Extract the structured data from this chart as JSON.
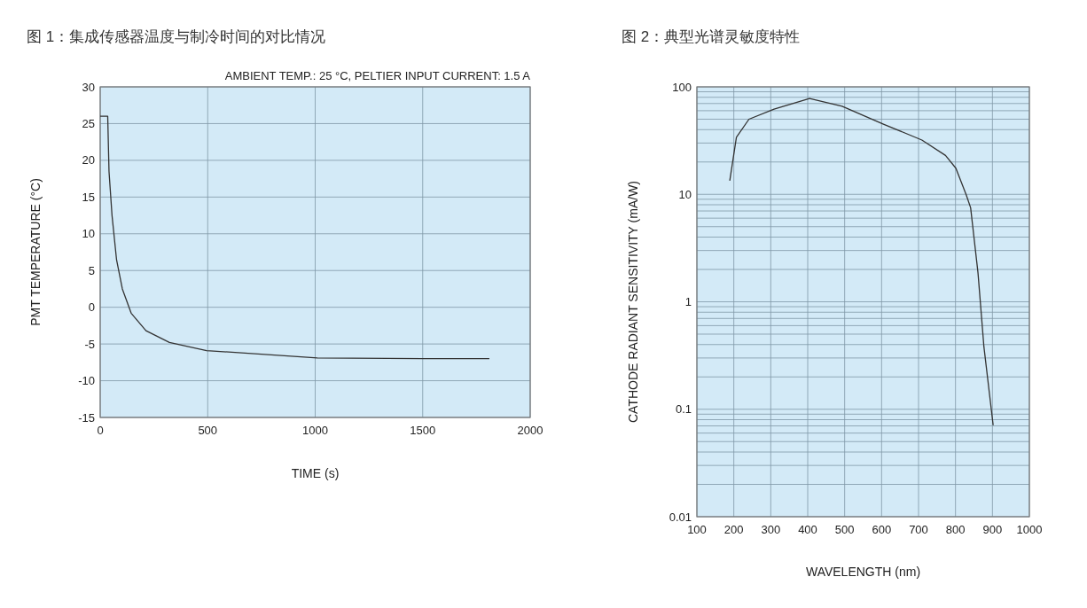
{
  "chart_data": [
    {
      "type": "line",
      "title": "图 1：集成传感器温度与制冷时间的对比情况",
      "xlabel": "TIME (s)",
      "ylabel": "PMT TEMPERATURE (°C)",
      "annotations": [
        "AMBIENT TEMP.: 25 °C, PELTIER INPUT CURRENT: 1.5 A"
      ],
      "xlim": [
        0,
        2000
      ],
      "ylim": [
        -15,
        30
      ],
      "xticks": [
        0,
        500,
        1000,
        1500,
        2000
      ],
      "yticks": [
        -15,
        -10,
        -5,
        0,
        5,
        10,
        15,
        20,
        25,
        30
      ],
      "grid": true,
      "series": [
        {
          "color": "#333333",
          "x": [
            0,
            35,
            41,
            55,
            76,
            103,
            144,
            213,
            322,
            495,
            1010,
            1500,
            1810
          ],
          "values": [
            26,
            26,
            18.5,
            12.5,
            6.5,
            2.5,
            -0.8,
            -3.2,
            -4.8,
            -5.9,
            -6.9,
            -7,
            -7
          ]
        }
      ]
    },
    {
      "type": "line",
      "title": "图 2：典型光谱灵敏度特性",
      "xlabel": "WAVELENGTH (nm)",
      "ylabel": "CATHODE RADIANT SENSITIVITY (mA/W)",
      "log": "y",
      "xlim": [
        100,
        1000
      ],
      "ylim": [
        0.01,
        100
      ],
      "xticks": [
        100,
        200,
        300,
        400,
        500,
        600,
        700,
        800,
        900,
        1000
      ],
      "yticks": [
        0.01,
        0.1,
        1,
        10,
        100
      ],
      "grid": true,
      "series": [
        {
          "color": "#333333",
          "x": [
            189,
            207,
            241,
            309,
            405,
            493,
            605,
            709,
            773,
            801,
            829,
            841,
            861,
            877,
            902
          ],
          "values": [
            13.4,
            34,
            50,
            62,
            78,
            66,
            45,
            32,
            23,
            17.5,
            9.9,
            7.5,
            1.85,
            0.38,
            0.071
          ]
        }
      ]
    }
  ]
}
